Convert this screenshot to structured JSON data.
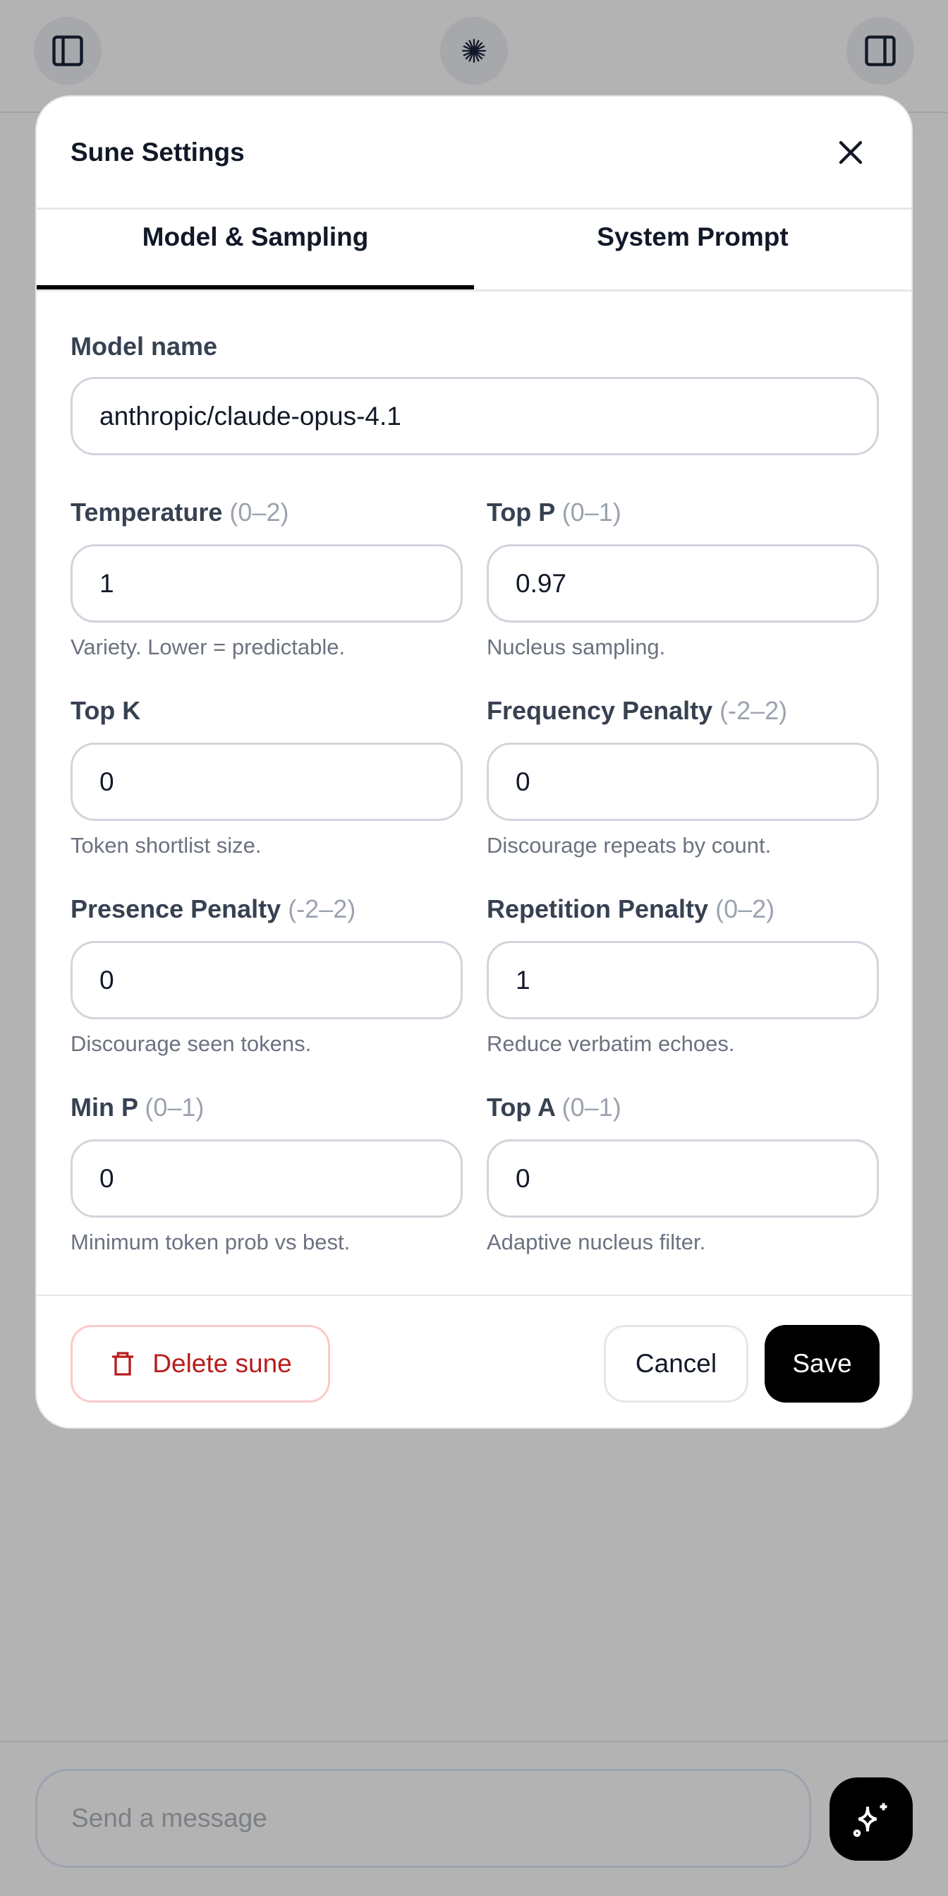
{
  "topbar": {
    "left_icon": "sidebar-left-icon",
    "center_icon": "starburst-logo-icon",
    "right_icon": "sidebar-right-icon"
  },
  "modal": {
    "title": "Sune Settings",
    "close_icon": "close-icon",
    "tabs": [
      {
        "label": "Model & Sampling",
        "active": true
      },
      {
        "label": "System Prompt",
        "active": false
      }
    ],
    "model_name": {
      "label": "Model name",
      "value": "anthropic/claude-opus-4.1"
    },
    "fields": [
      {
        "label": "Temperature",
        "range": "(0–2)",
        "value": "1",
        "help": "Variety. Lower = predictable."
      },
      {
        "label": "Top P",
        "range": "(0–1)",
        "value": "0.97",
        "help": "Nucleus sampling."
      },
      {
        "label": "Top K",
        "range": "",
        "value": "0",
        "help": "Token shortlist size."
      },
      {
        "label": "Frequency Penalty",
        "range": "(-2–2)",
        "value": "0",
        "help": "Discourage repeats by count."
      },
      {
        "label": "Presence Penalty",
        "range": "(-2–2)",
        "value": "0",
        "help": "Discourage seen tokens."
      },
      {
        "label": "Repetition Penalty",
        "range": "(0–2)",
        "value": "1",
        "help": "Reduce verbatim echoes."
      },
      {
        "label": "Min P",
        "range": "(0–1)",
        "value": "0",
        "help": "Minimum token prob vs best."
      },
      {
        "label": "Top A",
        "range": "(0–1)",
        "value": "0",
        "help": "Adaptive nucleus filter."
      }
    ],
    "footer": {
      "delete_label": "Delete sune",
      "cancel_label": "Cancel",
      "save_label": "Save"
    },
    "colors": {
      "danger": "#b91c1c",
      "primary": "#000000"
    }
  },
  "composer": {
    "placeholder": "Send a message",
    "send_icon": "sparkles-icon"
  }
}
